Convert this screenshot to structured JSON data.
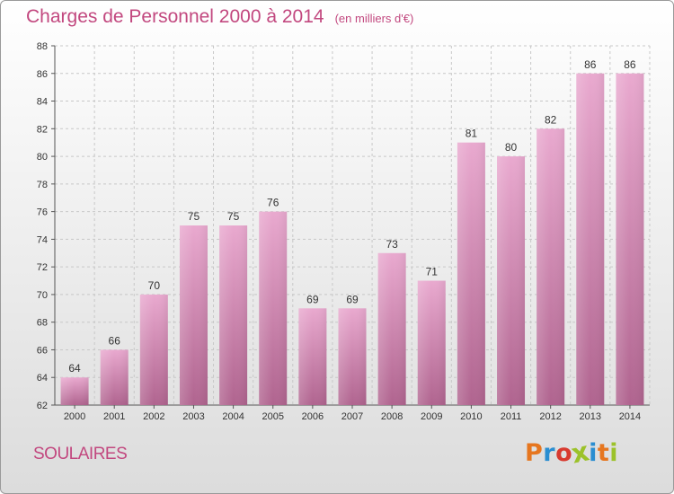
{
  "header": {
    "title": "Charges de Personnel 2000 à 2014",
    "unit": "(en milliers d'€)"
  },
  "footer": {
    "place": "SOULAIRES",
    "logo_text": "Proxiti"
  },
  "colors": {
    "title": "#c2487f",
    "bar_top": "#e9a9cf",
    "bar_bottom": "#b0648f",
    "grid": "#c8c8c8",
    "logo": [
      "#e6761f",
      "#2a8ed1",
      "#d83a2f",
      "#9cc22a",
      "#2a8ed1",
      "#e6761f",
      "#9cc22a"
    ]
  },
  "chart_data": {
    "type": "bar",
    "title": "Charges de Personnel 2000 à 2014",
    "subtitle": "(en milliers d'€)",
    "xlabel": "",
    "ylabel": "",
    "categories": [
      "2000",
      "2001",
      "2002",
      "2003",
      "2004",
      "2005",
      "2006",
      "2007",
      "2008",
      "2009",
      "2010",
      "2011",
      "2012",
      "2013",
      "2014"
    ],
    "values": [
      64,
      66,
      70,
      75,
      75,
      76,
      69,
      69,
      73,
      71,
      81,
      80,
      82,
      86,
      86
    ],
    "ylim": [
      62,
      88
    ],
    "yticks": [
      62,
      64,
      66,
      68,
      70,
      72,
      74,
      76,
      78,
      80,
      82,
      84,
      86,
      88
    ],
    "grid": true,
    "legend": "none"
  }
}
